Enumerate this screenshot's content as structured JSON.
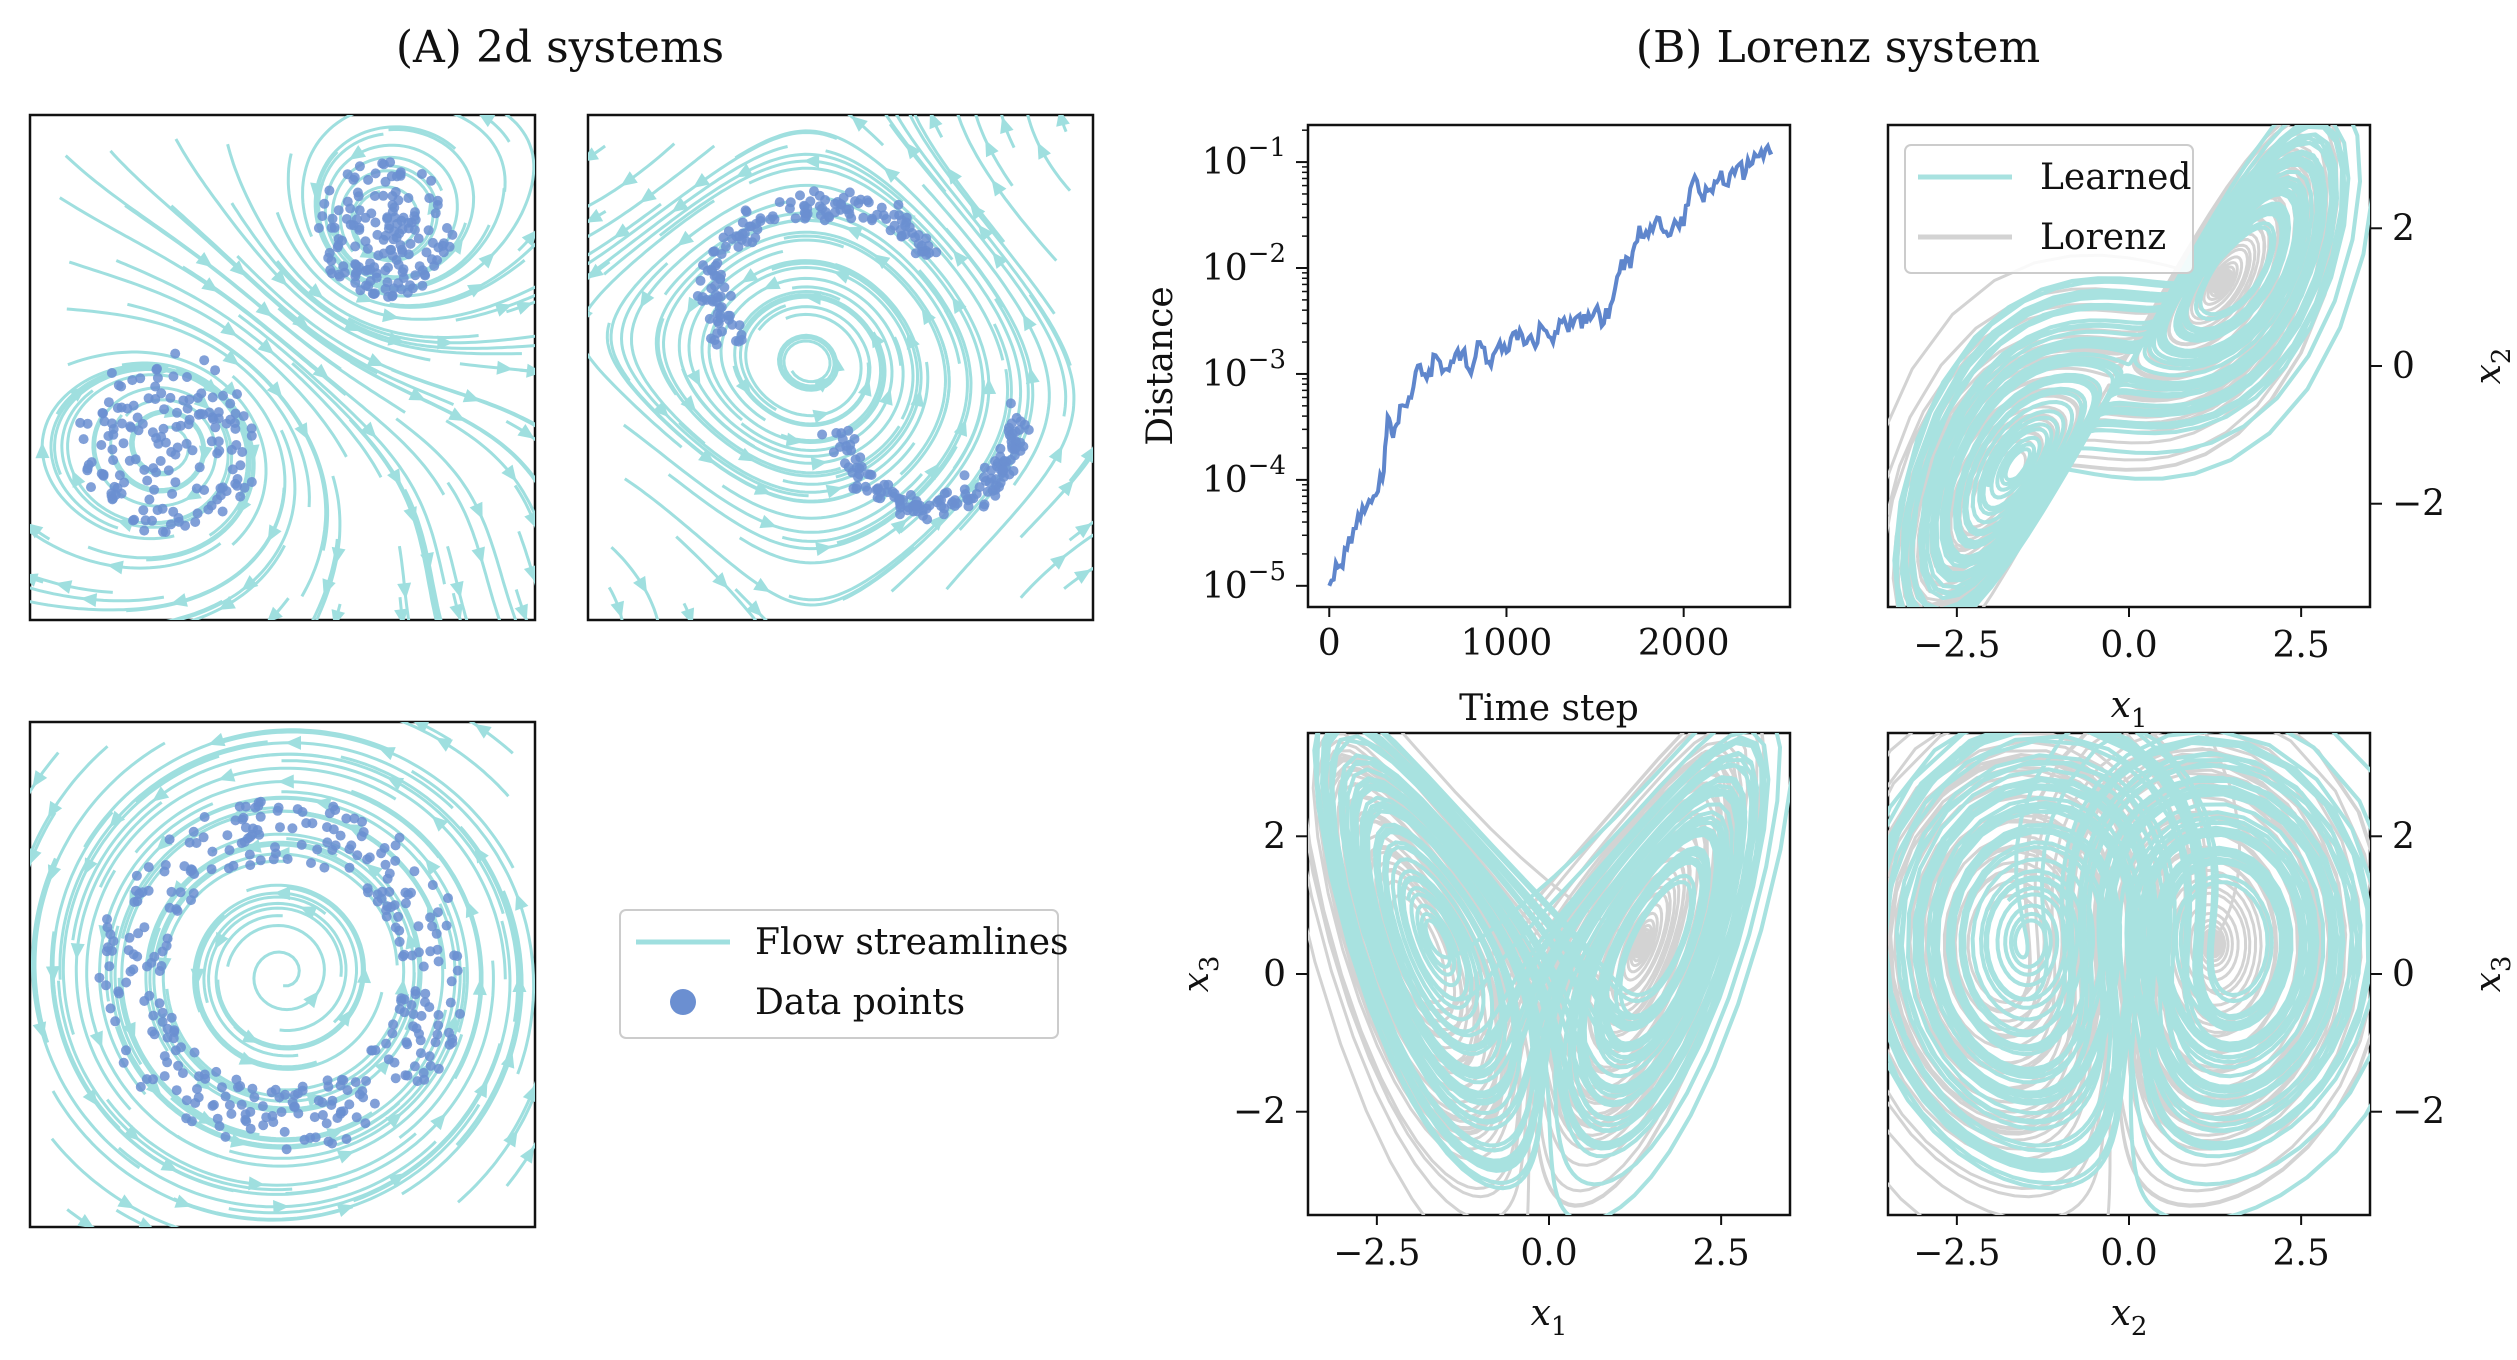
{
  "panels": {
    "a_title": "(A) 2d systems",
    "b_title": "(B) Lorenz system"
  },
  "colors": {
    "streamline": "#9fdfdf",
    "points": "#6b8fd1",
    "learned": "#a8e2e0",
    "lorenz": "#d3d3d3",
    "distance": "#5f86cc",
    "axes": "#111111"
  },
  "legend_2d": {
    "streamlines": "Flow streamlines",
    "points": "Data points"
  },
  "chart_data": [
    {
      "type": "scatter",
      "id": "2d-two-centers",
      "title": "",
      "xlabel": "",
      "ylabel": "",
      "xlim": [
        -1,
        1
      ],
      "ylim": [
        -1,
        1
      ],
      "centers": [
        {
          "x": 0.4,
          "y": 0.55,
          "r": 0.25
        },
        {
          "x": -0.45,
          "y": -0.3,
          "r": 0.33
        }
      ],
      "series": [
        {
          "name": "Flow streamlines"
        },
        {
          "name": "Data points"
        }
      ]
    },
    {
      "type": "scatter",
      "id": "2d-s-curve",
      "title": "",
      "xlabel": "",
      "ylabel": "",
      "xlim": [
        -1,
        1
      ],
      "ylim": [
        -1,
        1
      ],
      "series": [
        {
          "name": "Flow streamlines"
        },
        {
          "name": "Data points"
        }
      ]
    },
    {
      "type": "scatter",
      "id": "2d-ring",
      "title": "",
      "xlabel": "",
      "ylabel": "",
      "xlim": [
        -1,
        1
      ],
      "ylim": [
        -1,
        1
      ],
      "ring_radius": [
        0.45,
        0.7
      ],
      "series": [
        {
          "name": "Flow streamlines"
        },
        {
          "name": "Data points"
        }
      ]
    },
    {
      "type": "line",
      "id": "distance",
      "xlabel": "Time step",
      "ylabel": "Distance",
      "xlim": [
        -120,
        2600
      ],
      "ylim_log10": [
        -5.2,
        -0.65
      ],
      "yscale": "log",
      "xticks": [
        0,
        1000,
        2000
      ],
      "yticks": [
        "−5",
        "−4",
        "−3",
        "−2",
        "−1"
      ],
      "series": [
        {
          "name": "",
          "x": [
            0,
            50,
            100,
            150,
            200,
            250,
            300,
            330,
            360,
            400,
            450,
            500,
            550,
            600,
            650,
            700,
            750,
            800,
            850,
            900,
            950,
            1000,
            1050,
            1100,
            1150,
            1200,
            1250,
            1300,
            1350,
            1400,
            1450,
            1500,
            1550,
            1600,
            1650,
            1700,
            1750,
            1800,
            1850,
            1900,
            1950,
            2000,
            2050,
            2100,
            2150,
            2200,
            2250,
            2300,
            2350,
            2400,
            2450,
            2500
          ],
          "y": [
            1e-05,
            1.5e-05,
            2.2e-05,
            3.5e-05,
            5e-05,
            7e-05,
            0.0001,
            0.0004,
            0.00025,
            0.0005,
            0.0006,
            0.0012,
            0.0009,
            0.0015,
            0.0011,
            0.0013,
            0.0016,
            0.001,
            0.002,
            0.0013,
            0.0018,
            0.0016,
            0.0025,
            0.0019,
            0.002,
            0.0028,
            0.0022,
            0.0032,
            0.0025,
            0.0035,
            0.003,
            0.004,
            0.003,
            0.005,
            0.012,
            0.01,
            0.025,
            0.02,
            0.03,
            0.022,
            0.028,
            0.025,
            0.065,
            0.048,
            0.055,
            0.07,
            0.06,
            0.09,
            0.08,
            0.12,
            0.11,
            0.125
          ]
        }
      ]
    },
    {
      "type": "line",
      "id": "x1-x2",
      "xlabel_var": "x",
      "xlabel_sub": "1",
      "ylabel_var": "x",
      "ylabel_sub": "2",
      "xlim": [
        -3.5,
        3.5
      ],
      "ylim": [
        -3.5,
        3.5
      ],
      "xticks": [
        "−2.5",
        "0.0",
        "2.5"
      ],
      "yticks": [
        "−2",
        "0",
        "2"
      ],
      "legend": [
        {
          "name": "Learned"
        },
        {
          "name": "Lorenz"
        }
      ]
    },
    {
      "type": "line",
      "id": "x1-x3",
      "xlabel_var": "x",
      "xlabel_sub": "1",
      "ylabel_var": "x",
      "ylabel_sub": "3",
      "xlim": [
        -3.5,
        3.5
      ],
      "ylim": [
        -3.5,
        3.5
      ],
      "xticks": [
        "−2.5",
        "0.0",
        "2.5"
      ],
      "yticks": [
        "−2",
        "0",
        "2"
      ]
    },
    {
      "type": "line",
      "id": "x2-x3",
      "xlabel_var": "x",
      "xlabel_sub": "2",
      "ylabel_var": "x",
      "ylabel_sub": "3",
      "xlim": [
        -3.5,
        3.5
      ],
      "ylim": [
        -3.5,
        3.5
      ],
      "xticks": [
        "−2.5",
        "0.0",
        "2.5"
      ],
      "yticks": [
        "−2",
        "0",
        "2"
      ]
    }
  ]
}
